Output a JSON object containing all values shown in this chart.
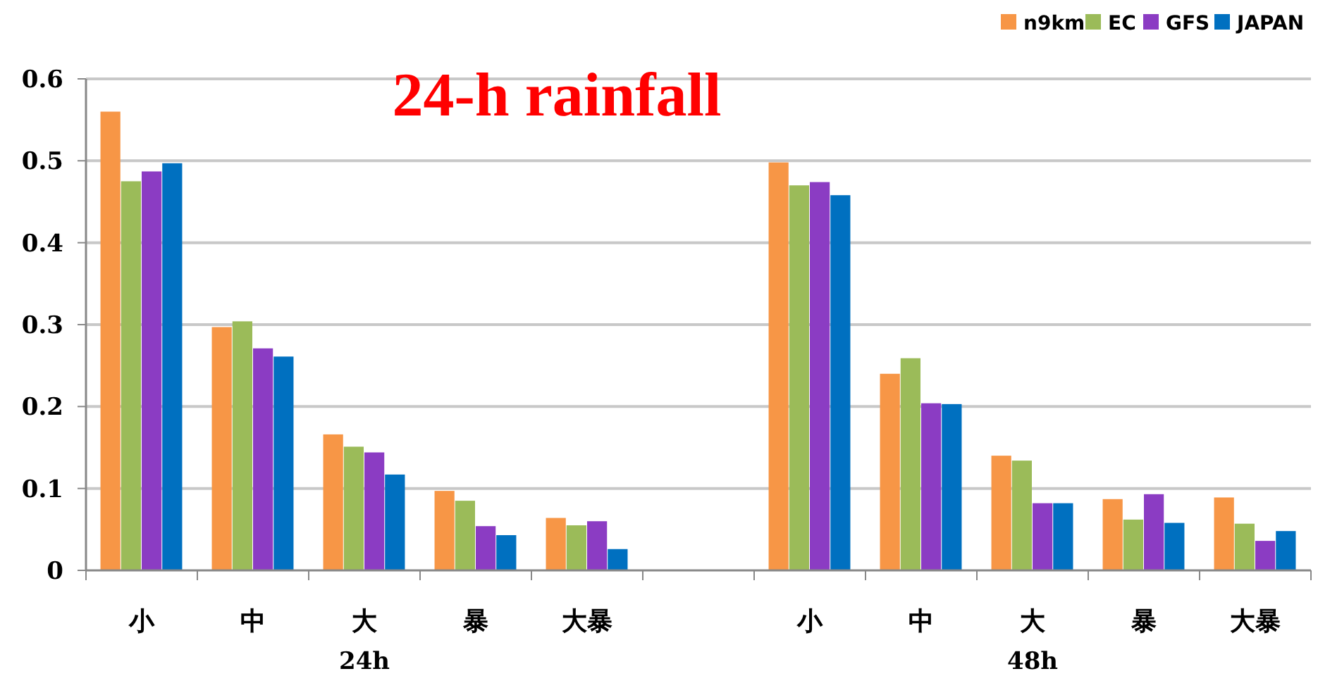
{
  "chart_data": {
    "type": "bar",
    "title": "24-h rainfall",
    "categories": [
      "小",
      "中",
      "大",
      "暴",
      "大暴",
      null,
      "小",
      "中",
      "大",
      "暴",
      "大暴"
    ],
    "series": [
      {
        "name": "n9km",
        "color": "#f79646",
        "values": [
          0.56,
          0.297,
          0.166,
          0.097,
          0.064,
          null,
          0.498,
          0.24,
          0.14,
          0.087,
          0.089
        ]
      },
      {
        "name": "EC",
        "color": "#9bbb59",
        "values": [
          0.475,
          0.304,
          0.151,
          0.085,
          0.055,
          null,
          0.47,
          0.259,
          0.134,
          0.062,
          0.057
        ]
      },
      {
        "name": "GFS",
        "color": "#8b3cc3",
        "values": [
          0.487,
          0.271,
          0.144,
          0.054,
          0.06,
          null,
          0.474,
          0.204,
          0.082,
          0.093,
          0.036
        ]
      },
      {
        "name": "JAPAN",
        "color": "#0070c0",
        "values": [
          0.497,
          0.261,
          0.117,
          0.043,
          0.026,
          null,
          0.458,
          0.203,
          0.082,
          0.058,
          0.048
        ]
      }
    ],
    "annotations": [
      "24h",
      "48h"
    ],
    "ylim": [
      0,
      0.6
    ],
    "yticks": [
      0,
      0.1,
      0.2,
      0.3,
      0.4,
      0.5,
      0.6
    ],
    "grid": "y",
    "legend": "top right"
  }
}
